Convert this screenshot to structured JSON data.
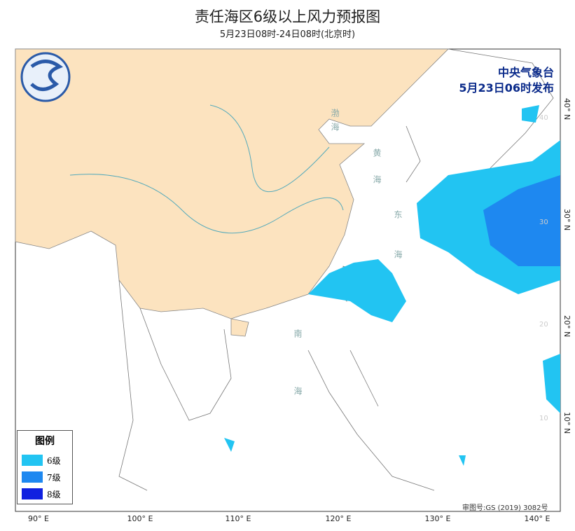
{
  "header": {
    "title": "责任海区6级以上风力预报图",
    "subtitle": "5月23日08时-24日08时(北京时)"
  },
  "issuer": {
    "name": "中央气象台",
    "issued": "5月23日06时发布"
  },
  "seas": [
    "渤海",
    "黄海",
    "东海",
    "南海"
  ],
  "longitude_labels": [
    "90° E",
    "100° E",
    "110° E",
    "120° E",
    "130° E",
    "140° E"
  ],
  "latitude_labels": [
    "40° N",
    "30° N",
    "20° N",
    "10° N"
  ],
  "grid_labels": [
    "40",
    "30",
    "20",
    "10"
  ],
  "legend": {
    "title": "图例",
    "items": [
      {
        "label": "6级",
        "color": "#22c4f2"
      },
      {
        "label": "7级",
        "color": "#1e88f0"
      },
      {
        "label": "8级",
        "color": "#1020e0"
      }
    ]
  },
  "approval": "审图号:GS (2019) 3082号"
}
